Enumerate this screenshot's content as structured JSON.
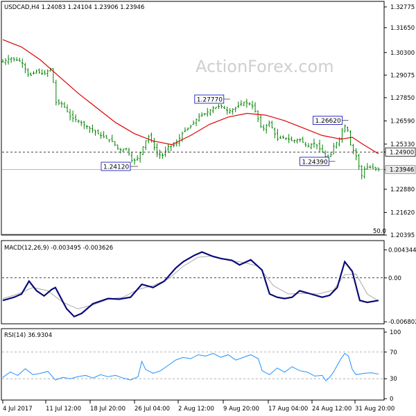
{
  "watermark": "ActionForex.com",
  "chart_data": [
    {
      "type": "candlestick",
      "title": "USDCAD,H4 1.24083 1.24104 1.23906 1.23946",
      "y_ticks": [
        "1.32775",
        "1.31650",
        "1.30300",
        "1.29075",
        "1.27850",
        "1.26590",
        "1.25330",
        "1.24900",
        "1.23946",
        "1.22880",
        "1.21620",
        "1.20395"
      ],
      "ylim": [
        1.20395,
        1.33
      ],
      "last_price": 1.23946,
      "last_price_label": "1.23946",
      "horizontal_level": 1.249,
      "horizontal_level_label": "1.24900",
      "fib_label": "50.0",
      "annotations": [
        {
          "text": "1.24120",
          "price": 1.2412,
          "t": 0.345
        },
        {
          "text": "1.27770",
          "price": 1.2777,
          "t": 0.59
        },
        {
          "text": "1.26620",
          "price": 1.2662,
          "t": 0.905
        },
        {
          "text": "1.24390",
          "price": 1.2439,
          "t": 0.87
        }
      ],
      "price_path": [
        [
          0.0,
          1.298
        ],
        [
          0.02,
          1.3
        ],
        [
          0.05,
          1.298
        ],
        [
          0.07,
          1.29
        ],
        [
          0.09,
          1.293
        ],
        [
          0.11,
          1.291
        ],
        [
          0.13,
          1.295
        ],
        [
          0.14,
          1.276
        ],
        [
          0.16,
          1.275
        ],
        [
          0.18,
          1.268
        ],
        [
          0.2,
          1.266
        ],
        [
          0.23,
          1.262
        ],
        [
          0.26,
          1.258
        ],
        [
          0.29,
          1.255
        ],
        [
          0.31,
          1.25
        ],
        [
          0.33,
          1.251
        ],
        [
          0.345,
          1.2435
        ],
        [
          0.36,
          1.246
        ],
        [
          0.38,
          1.255
        ],
        [
          0.39,
          1.258
        ],
        [
          0.41,
          1.248
        ],
        [
          0.425,
          1.247
        ],
        [
          0.44,
          1.252
        ],
        [
          0.46,
          1.253
        ],
        [
          0.48,
          1.26
        ],
        [
          0.5,
          1.263
        ],
        [
          0.52,
          1.268
        ],
        [
          0.54,
          1.27
        ],
        [
          0.56,
          1.273
        ],
        [
          0.58,
          1.274
        ],
        [
          0.6,
          1.271
        ],
        [
          0.62,
          1.273
        ],
        [
          0.64,
          1.276
        ],
        [
          0.66,
          1.275
        ],
        [
          0.67,
          1.272
        ],
        [
          0.69,
          1.261
        ],
        [
          0.71,
          1.265
        ],
        [
          0.73,
          1.256
        ],
        [
          0.75,
          1.257
        ],
        [
          0.77,
          1.255
        ],
        [
          0.79,
          1.256
        ],
        [
          0.81,
          1.252
        ],
        [
          0.83,
          1.254
        ],
        [
          0.85,
          1.249
        ],
        [
          0.86,
          1.246
        ],
        [
          0.87,
          1.2455
        ],
        [
          0.88,
          1.252
        ],
        [
          0.895,
          1.256
        ],
        [
          0.905,
          1.262
        ],
        [
          0.915,
          1.264
        ],
        [
          0.925,
          1.253
        ],
        [
          0.94,
          1.247
        ],
        [
          0.955,
          1.236
        ],
        [
          0.965,
          1.241
        ],
        [
          0.98,
          1.2405
        ],
        [
          1.0,
          1.23946
        ]
      ],
      "ma_path": [
        [
          0.0,
          1.31
        ],
        [
          0.05,
          1.306
        ],
        [
          0.1,
          1.299
        ],
        [
          0.15,
          1.29
        ],
        [
          0.2,
          1.281
        ],
        [
          0.25,
          1.273
        ],
        [
          0.3,
          1.265
        ],
        [
          0.35,
          1.259
        ],
        [
          0.4,
          1.255
        ],
        [
          0.45,
          1.253
        ],
        [
          0.5,
          1.258
        ],
        [
          0.55,
          1.264
        ],
        [
          0.6,
          1.268
        ],
        [
          0.65,
          1.27
        ],
        [
          0.7,
          1.269
        ],
        [
          0.75,
          1.266
        ],
        [
          0.8,
          1.262
        ],
        [
          0.85,
          1.258
        ],
        [
          0.9,
          1.256
        ],
        [
          0.93,
          1.257
        ],
        [
          0.96,
          1.253
        ],
        [
          1.0,
          1.248
        ]
      ],
      "colors": {
        "candles": "#008000",
        "ma": "#e00000"
      }
    },
    {
      "type": "line",
      "title": "MACD(12,26,9) -0.003495 -0.003626",
      "y_ticks": [
        "0.004344",
        "0.00",
        "-0.006802"
      ],
      "ylim": [
        -0.0069,
        0.0047
      ],
      "series": [
        {
          "values": [
            [
              0.0,
              -0.0035
            ],
            [
              0.03,
              -0.003
            ],
            [
              0.05,
              -0.0025
            ],
            [
              0.07,
              -0.0005
            ],
            [
              0.09,
              -0.002
            ],
            [
              0.11,
              -0.0028
            ],
            [
              0.13,
              -0.0018
            ],
            [
              0.14,
              -0.0015
            ],
            [
              0.17,
              -0.0048
            ],
            [
              0.19,
              -0.006
            ],
            [
              0.21,
              -0.0055
            ],
            [
              0.24,
              -0.004
            ],
            [
              0.28,
              -0.0032
            ],
            [
              0.31,
              -0.0033
            ],
            [
              0.34,
              -0.003
            ],
            [
              0.37,
              -0.001
            ],
            [
              0.4,
              -0.0015
            ],
            [
              0.43,
              -0.0005
            ],
            [
              0.46,
              0.0015
            ],
            [
              0.48,
              0.0025
            ],
            [
              0.51,
              0.0035
            ],
            [
              0.53,
              0.004
            ],
            [
              0.56,
              0.0033
            ],
            [
              0.58,
              0.003
            ],
            [
              0.61,
              0.0027
            ],
            [
              0.63,
              0.002
            ],
            [
              0.66,
              0.0028
            ],
            [
              0.69,
              0.0012
            ],
            [
              0.71,
              -0.0025
            ],
            [
              0.73,
              -0.003
            ],
            [
              0.75,
              -0.0032
            ],
            [
              0.77,
              -0.003
            ],
            [
              0.79,
              -0.002
            ],
            [
              0.82,
              -0.0025
            ],
            [
              0.85,
              -0.003
            ],
            [
              0.87,
              -0.0027
            ],
            [
              0.89,
              -0.0015
            ],
            [
              0.91,
              0.0025
            ],
            [
              0.93,
              0.001
            ],
            [
              0.95,
              -0.0035
            ],
            [
              0.97,
              -0.0038
            ],
            [
              1.0,
              -0.0035
            ]
          ],
          "color": "#0a0a7a"
        },
        {
          "values": [
            [
              0.0,
              -0.0032
            ],
            [
              0.04,
              -0.0025
            ],
            [
              0.08,
              -0.0015
            ],
            [
              0.12,
              -0.002
            ],
            [
              0.16,
              -0.0038
            ],
            [
              0.2,
              -0.0048
            ],
            [
              0.24,
              -0.0042
            ],
            [
              0.28,
              -0.0033
            ],
            [
              0.32,
              -0.003
            ],
            [
              0.36,
              -0.0018
            ],
            [
              0.4,
              -0.0012
            ],
            [
              0.44,
              -0.0002
            ],
            [
              0.48,
              0.0018
            ],
            [
              0.52,
              0.0032
            ],
            [
              0.56,
              0.0034
            ],
            [
              0.6,
              0.0027
            ],
            [
              0.64,
              0.0024
            ],
            [
              0.68,
              0.0018
            ],
            [
              0.72,
              -0.0012
            ],
            [
              0.76,
              -0.0025
            ],
            [
              0.8,
              -0.0024
            ],
            [
              0.84,
              -0.0025
            ],
            [
              0.88,
              -0.0019
            ],
            [
              0.91,
              0.0005
            ],
            [
              0.94,
              0.0006
            ],
            [
              0.97,
              -0.0025
            ],
            [
              1.0,
              -0.0036
            ]
          ],
          "color": "#a8a8a8"
        }
      ]
    },
    {
      "type": "line",
      "title": "RSI(14) 36.9304",
      "y_ticks": [
        "100",
        "70",
        "30",
        "0"
      ],
      "levels": [
        70,
        30
      ],
      "ylim": [
        0,
        100
      ],
      "series": [
        {
          "values": [
            [
              0.0,
              32
            ],
            [
              0.02,
              40
            ],
            [
              0.04,
              35
            ],
            [
              0.06,
              45
            ],
            [
              0.08,
              36
            ],
            [
              0.1,
              38
            ],
            [
              0.12,
              41
            ],
            [
              0.14,
              28
            ],
            [
              0.16,
              32
            ],
            [
              0.18,
              30
            ],
            [
              0.2,
              33
            ],
            [
              0.22,
              35
            ],
            [
              0.24,
              31
            ],
            [
              0.26,
              36
            ],
            [
              0.28,
              33
            ],
            [
              0.3,
              35
            ],
            [
              0.32,
              31
            ],
            [
              0.34,
              28
            ],
            [
              0.36,
              33
            ],
            [
              0.37,
              56
            ],
            [
              0.38,
              44
            ],
            [
              0.4,
              38
            ],
            [
              0.42,
              42
            ],
            [
              0.44,
              50
            ],
            [
              0.46,
              58
            ],
            [
              0.48,
              62
            ],
            [
              0.5,
              60
            ],
            [
              0.52,
              66
            ],
            [
              0.54,
              64
            ],
            [
              0.56,
              68
            ],
            [
              0.58,
              62
            ],
            [
              0.6,
              66
            ],
            [
              0.62,
              58
            ],
            [
              0.64,
              62
            ],
            [
              0.66,
              66
            ],
            [
              0.68,
              60
            ],
            [
              0.69,
              42
            ],
            [
              0.71,
              36
            ],
            [
              0.73,
              46
            ],
            [
              0.75,
              40
            ],
            [
              0.77,
              48
            ],
            [
              0.79,
              42
            ],
            [
              0.81,
              40
            ],
            [
              0.83,
              34
            ],
            [
              0.85,
              35
            ],
            [
              0.86,
              27
            ],
            [
              0.87,
              32
            ],
            [
              0.88,
              40
            ],
            [
              0.89,
              50
            ],
            [
              0.9,
              60
            ],
            [
              0.91,
              68
            ],
            [
              0.92,
              64
            ],
            [
              0.93,
              44
            ],
            [
              0.94,
              36
            ],
            [
              0.96,
              38
            ],
            [
              0.98,
              39
            ],
            [
              1.0,
              36.93
            ]
          ],
          "color": "#1e90ff"
        }
      ]
    }
  ],
  "x_axis_labels": [
    "4 Jul 2017",
    "11 Jul 12:00",
    "18 Jul 20:00",
    "26 Jul 04:00",
    "2 Aug 12:00",
    "9 Aug 20:00",
    "17 Aug 04:00",
    "24 Aug 12:00",
    "31 Aug 20:00"
  ]
}
